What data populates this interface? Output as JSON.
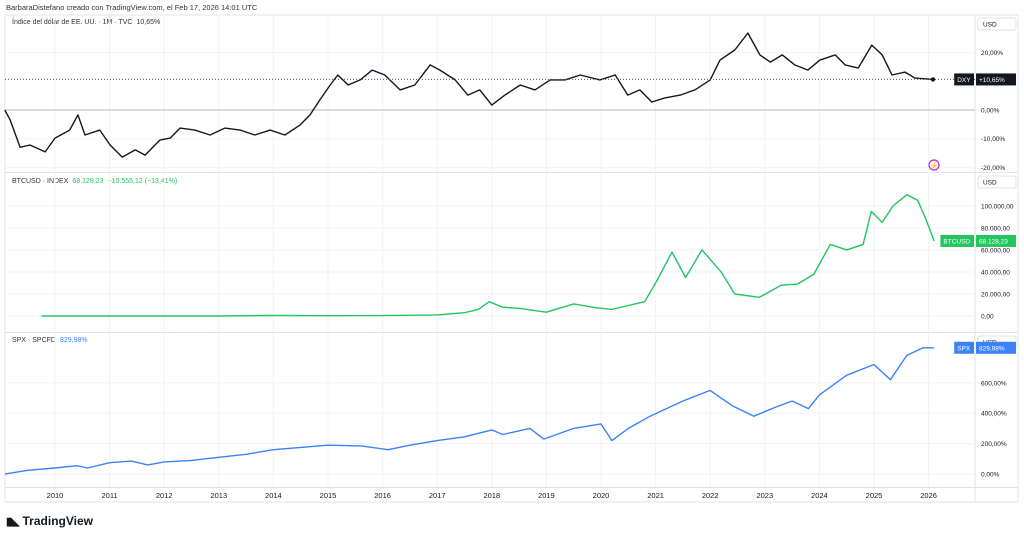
{
  "header": {
    "attribution": "BarbaraDistefano creado con TradingView.com, el Feb 17, 2026 14:01 UTC"
  },
  "brand": {
    "name": "TradingView",
    "logo_mark": "17"
  },
  "chart_data": [
    {
      "type": "line",
      "title": "Índice del dólar de EE. UU. · 1M · TVC",
      "last_value_label": "10,65%",
      "currency": "USD",
      "color": "#131722",
      "tag": {
        "symbol": "DXY",
        "value": "+10,65%"
      },
      "y_ticks": [
        {
          "v": 20,
          "label": "20,00%"
        },
        {
          "v": 0,
          "label": "0,00%"
        },
        {
          "v": -10,
          "label": "-10,00%"
        },
        {
          "v": -20,
          "label": "-20,00%"
        }
      ],
      "ylim": [
        -20.9,
        32.4
      ],
      "points": [
        [
          2009.08,
          0
        ],
        [
          2009.18,
          -3.5
        ],
        [
          2009.36,
          -13
        ],
        [
          2009.54,
          -12.2
        ],
        [
          2009.82,
          -14.6
        ],
        [
          2010.0,
          -9.8
        ],
        [
          2010.27,
          -7
        ],
        [
          2010.42,
          -1.7
        ],
        [
          2010.55,
          -8.7
        ],
        [
          2010.82,
          -7
        ],
        [
          2011.01,
          -12.2
        ],
        [
          2011.23,
          -16.4
        ],
        [
          2011.47,
          -13.9
        ],
        [
          2011.65,
          -15.7
        ],
        [
          2011.92,
          -10.5
        ],
        [
          2012.11,
          -9.8
        ],
        [
          2012.29,
          -6.3
        ],
        [
          2012.56,
          -7
        ],
        [
          2012.84,
          -8.7
        ],
        [
          2013.11,
          -6.3
        ],
        [
          2013.39,
          -7
        ],
        [
          2013.66,
          -8.7
        ],
        [
          2013.94,
          -7
        ],
        [
          2014.21,
          -8.7
        ],
        [
          2014.49,
          -5.2
        ],
        [
          2014.67,
          -1.7
        ],
        [
          2014.85,
          3.5
        ],
        [
          2015.04,
          8.7
        ],
        [
          2015.18,
          12.2
        ],
        [
          2015.37,
          8.7
        ],
        [
          2015.59,
          10.5
        ],
        [
          2015.81,
          13.9
        ],
        [
          2016.04,
          12.2
        ],
        [
          2016.32,
          7
        ],
        [
          2016.59,
          8.7
        ],
        [
          2016.87,
          15.7
        ],
        [
          2017.05,
          13.9
        ],
        [
          2017.33,
          10.5
        ],
        [
          2017.56,
          5.2
        ],
        [
          2017.78,
          7
        ],
        [
          2018.0,
          1.7
        ],
        [
          2018.24,
          5.2
        ],
        [
          2018.52,
          8.7
        ],
        [
          2018.79,
          7
        ],
        [
          2019.07,
          10.5
        ],
        [
          2019.34,
          10.5
        ],
        [
          2019.62,
          12.2
        ],
        [
          2019.98,
          10.5
        ],
        [
          2020.26,
          12.2
        ],
        [
          2020.49,
          5.2
        ],
        [
          2020.71,
          7
        ],
        [
          2020.93,
          2.8
        ],
        [
          2021.17,
          4.2
        ],
        [
          2021.45,
          5.2
        ],
        [
          2021.72,
          7
        ],
        [
          2022.0,
          10.5
        ],
        [
          2022.18,
          17.4
        ],
        [
          2022.45,
          20.9
        ],
        [
          2022.69,
          26.8
        ],
        [
          2022.91,
          19.2
        ],
        [
          2023.1,
          16.7
        ],
        [
          2023.32,
          19.2
        ],
        [
          2023.55,
          15.7
        ],
        [
          2023.79,
          13.9
        ],
        [
          2024.01,
          17.4
        ],
        [
          2024.29,
          19.2
        ],
        [
          2024.47,
          15.7
        ],
        [
          2024.71,
          14.6
        ],
        [
          2024.96,
          22.6
        ],
        [
          2025.15,
          19.2
        ],
        [
          2025.33,
          12.2
        ],
        [
          2025.57,
          13.2
        ],
        [
          2025.75,
          11.1
        ],
        [
          2026.08,
          10.65
        ]
      ]
    },
    {
      "type": "line",
      "title": "BTCUSD · INDEX",
      "last_value_label": "68.128,23",
      "change_label": "−10.555,12 (−13,41%)",
      "currency": "USD",
      "color": "#22c55e",
      "tag": {
        "symbol": "BTCUSD",
        "value": "68.128,23"
      },
      "y_ticks": [
        {
          "v": 100000,
          "label": "100.000,00"
        },
        {
          "v": 80000,
          "label": "80.000,00"
        },
        {
          "v": 60000,
          "label": "60.000,00"
        },
        {
          "v": 40000,
          "label": "40.000,00"
        },
        {
          "v": 20000,
          "label": "20.000,00"
        },
        {
          "v": 0,
          "label": "0,00"
        }
      ],
      "ylim": [
        -12700,
        128000
      ],
      "points": [
        [
          2009.75,
          0
        ],
        [
          2013.0,
          0
        ],
        [
          2013.9,
          500
        ],
        [
          2015.0,
          300
        ],
        [
          2016.0,
          400
        ],
        [
          2017.0,
          1000
        ],
        [
          2017.5,
          3000
        ],
        [
          2017.75,
          6000
        ],
        [
          2017.95,
          13000
        ],
        [
          2018.2,
          8000
        ],
        [
          2018.5,
          7000
        ],
        [
          2019.0,
          3500
        ],
        [
          2019.5,
          11000
        ],
        [
          2019.9,
          7500
        ],
        [
          2020.2,
          6000
        ],
        [
          2020.5,
          9500
        ],
        [
          2020.8,
          13000
        ],
        [
          2021.0,
          30000
        ],
        [
          2021.3,
          58000
        ],
        [
          2021.55,
          35000
        ],
        [
          2021.85,
          60000
        ],
        [
          2022.2,
          40000
        ],
        [
          2022.45,
          20000
        ],
        [
          2022.9,
          17000
        ],
        [
          2023.3,
          28000
        ],
        [
          2023.6,
          29000
        ],
        [
          2023.9,
          38000
        ],
        [
          2024.2,
          65000
        ],
        [
          2024.5,
          60000
        ],
        [
          2024.8,
          65000
        ],
        [
          2024.95,
          95000
        ],
        [
          2025.15,
          85000
        ],
        [
          2025.35,
          100000
        ],
        [
          2025.6,
          110000
        ],
        [
          2025.8,
          105000
        ],
        [
          2025.95,
          88000
        ],
        [
          2026.1,
          68128.23
        ]
      ]
    },
    {
      "type": "line",
      "title": "SPX · SPCFD",
      "last_value_label": "829,98%",
      "currency": "USD",
      "color": "#3b82f6",
      "tag": {
        "symbol": "SPX",
        "value": "829,98%"
      },
      "y_ticks": [
        {
          "v": 600,
          "label": "600,00%"
        },
        {
          "v": 400,
          "label": "400,00%"
        },
        {
          "v": 200,
          "label": "200,00%"
        },
        {
          "v": 0,
          "label": "0,00%"
        }
      ],
      "ylim": [
        -85,
        914
      ],
      "points": [
        [
          2009.08,
          0
        ],
        [
          2009.5,
          25
        ],
        [
          2010.0,
          40
        ],
        [
          2010.4,
          55
        ],
        [
          2010.6,
          40
        ],
        [
          2011.0,
          75
        ],
        [
          2011.4,
          85
        ],
        [
          2011.7,
          60
        ],
        [
          2012.0,
          80
        ],
        [
          2012.5,
          90
        ],
        [
          2013.0,
          110
        ],
        [
          2013.5,
          130
        ],
        [
          2014.0,
          160
        ],
        [
          2014.5,
          175
        ],
        [
          2015.0,
          190
        ],
        [
          2015.6,
          185
        ],
        [
          2016.1,
          160
        ],
        [
          2016.5,
          190
        ],
        [
          2017.0,
          220
        ],
        [
          2017.5,
          245
        ],
        [
          2018.0,
          290
        ],
        [
          2018.2,
          260
        ],
        [
          2018.7,
          300
        ],
        [
          2018.95,
          230
        ],
        [
          2019.5,
          300
        ],
        [
          2020.0,
          330
        ],
        [
          2020.2,
          220
        ],
        [
          2020.5,
          300
        ],
        [
          2020.9,
          380
        ],
        [
          2021.5,
          480
        ],
        [
          2022.0,
          550
        ],
        [
          2022.4,
          450
        ],
        [
          2022.8,
          380
        ],
        [
          2023.2,
          440
        ],
        [
          2023.5,
          480
        ],
        [
          2023.8,
          430
        ],
        [
          2024.0,
          520
        ],
        [
          2024.5,
          650
        ],
        [
          2025.0,
          720
        ],
        [
          2025.3,
          620
        ],
        [
          2025.6,
          780
        ],
        [
          2025.9,
          830
        ],
        [
          2026.1,
          829.98
        ]
      ]
    }
  ],
  "x_axis": {
    "ticks": [
      "2010",
      "2011",
      "2012",
      "2013",
      "2014",
      "2015",
      "2016",
      "2017",
      "2018",
      "2019",
      "2020",
      "2021",
      "2022",
      "2023",
      "2024",
      "2025",
      "2026"
    ]
  },
  "flash_icon": "lightning-icon"
}
